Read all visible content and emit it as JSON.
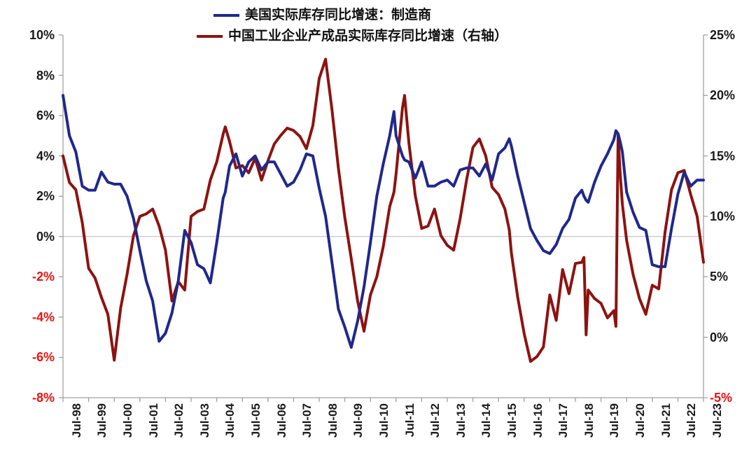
{
  "chart_data": {
    "type": "line",
    "title": "",
    "x_unit": "months_since_Jul-1998",
    "x": [
      0,
      3,
      6,
      9,
      12,
      15,
      18,
      21,
      24,
      27,
      30,
      33,
      36,
      39,
      42,
      45,
      48,
      51,
      54,
      57,
      60,
      63,
      66,
      69,
      72,
      75,
      76,
      78,
      81,
      84,
      87,
      90,
      93,
      96,
      99,
      102,
      105,
      108,
      111,
      114,
      117,
      120,
      123,
      126,
      129,
      132,
      135,
      138,
      141,
      144,
      147,
      150,
      153,
      155,
      156,
      159,
      160,
      162,
      165,
      168,
      171,
      174,
      177,
      180,
      183,
      186,
      189,
      192,
      195,
      198,
      201,
      204,
      207,
      209,
      210,
      213,
      216,
      219,
      222,
      225,
      228,
      231,
      234,
      237,
      240,
      243,
      244,
      245,
      246,
      249,
      252,
      255,
      258,
      259,
      260,
      261,
      262,
      264,
      267,
      270,
      273,
      276,
      279,
      282,
      285,
      288,
      291,
      294,
      297,
      300
    ],
    "series": [
      {
        "name": "美国实际库存同比增速：制造商",
        "axis": "left",
        "color": "#20288c",
        "values": [
          7.0,
          5.0,
          4.2,
          2.5,
          2.3,
          2.3,
          3.2,
          2.7,
          2.6,
          2.6,
          2.0,
          0.9,
          -0.7,
          -2.2,
          -3.2,
          -5.2,
          -4.8,
          -3.8,
          -2.2,
          0.3,
          -0.3,
          -1.4,
          -1.6,
          -2.3,
          -0.3,
          1.9,
          2.2,
          3.5,
          4.1,
          3.0,
          3.7,
          4.0,
          3.3,
          3.7,
          3.7,
          3.1,
          2.5,
          2.7,
          3.3,
          4.1,
          4.0,
          2.4,
          1.0,
          -1.3,
          -3.6,
          -4.5,
          -5.5,
          -4.2,
          -2.5,
          -0.3,
          2.0,
          3.6,
          5.0,
          6.2,
          5.0,
          4.0,
          3.8,
          3.7,
          2.9,
          3.7,
          2.5,
          2.5,
          2.7,
          2.8,
          2.5,
          3.3,
          3.4,
          3.4,
          3.0,
          3.6,
          2.8,
          4.1,
          4.4,
          4.85,
          4.5,
          3.0,
          1.7,
          0.4,
          -0.2,
          -0.7,
          -0.85,
          -0.4,
          0.4,
          0.85,
          1.9,
          2.3,
          2.0,
          1.8,
          1.7,
          2.7,
          3.5,
          4.1,
          4.8,
          5.25,
          5.1,
          4.7,
          4.2,
          2.2,
          1.2,
          0.45,
          0.3,
          -1.4,
          -1.5,
          -1.5,
          0.4,
          2.1,
          3.2,
          2.5,
          2.8,
          2.8
        ]
      },
      {
        "name": "中国工业企业产成品实际库存同比增速（右轴）",
        "axis": "right",
        "color": "#8c1310",
        "values": [
          15.0,
          12.8,
          12.2,
          9.5,
          5.7,
          4.9,
          3.3,
          1.9,
          -1.9,
          2.4,
          5.2,
          8.4,
          10.0,
          10.2,
          10.6,
          9.2,
          7.2,
          3.0,
          4.6,
          3.9,
          10.0,
          10.4,
          10.6,
          13.0,
          14.5,
          16.8,
          17.4,
          16.2,
          14.0,
          14.2,
          13.6,
          14.8,
          13.0,
          14.6,
          16.0,
          16.7,
          17.3,
          17.1,
          16.6,
          15.6,
          17.5,
          21.4,
          23.0,
          18.8,
          14.0,
          9.9,
          6.5,
          3.0,
          0.5,
          3.5,
          5.0,
          7.5,
          10.8,
          12.0,
          13.5,
          19.0,
          20.0,
          16.1,
          11.7,
          9.0,
          9.2,
          10.6,
          8.4,
          7.6,
          7.2,
          9.8,
          13.0,
          15.7,
          16.4,
          15.0,
          12.4,
          11.8,
          10.6,
          8.9,
          7.0,
          3.3,
          0.3,
          -2.0,
          -1.6,
          -0.8,
          3.5,
          1.4,
          5.6,
          3.6,
          6.1,
          6.2,
          6.6,
          0.2,
          3.9,
          3.2,
          2.8,
          1.6,
          2.2,
          0.9,
          16.7,
          13.5,
          11.0,
          8.0,
          5.2,
          3.2,
          1.9,
          4.3,
          4.0,
          8.7,
          12.2,
          13.6,
          13.8,
          11.8,
          10.0,
          6.2
        ]
      }
    ],
    "left_axis": {
      "min": -8,
      "max": 10,
      "ticks": [
        {
          "value": 10,
          "label": "10%"
        },
        {
          "value": 8,
          "label": "8%"
        },
        {
          "value": 6,
          "label": "6%"
        },
        {
          "value": 4,
          "label": "4%"
        },
        {
          "value": 2,
          "label": "2%"
        },
        {
          "value": 0,
          "label": "0%"
        },
        {
          "value": -2,
          "label": "-2%"
        },
        {
          "value": -4,
          "label": "-4%"
        },
        {
          "value": -6,
          "label": "-6%"
        },
        {
          "value": -8,
          "label": "-8%"
        }
      ]
    },
    "right_axis": {
      "min": -5,
      "max": 25,
      "ticks": [
        {
          "value": 25,
          "label": "25%"
        },
        {
          "value": 20,
          "label": "20%"
        },
        {
          "value": 15,
          "label": "15%"
        },
        {
          "value": 10,
          "label": "10%"
        },
        {
          "value": 5,
          "label": "5%"
        },
        {
          "value": 0,
          "label": "0%"
        },
        {
          "value": -5,
          "label": "-5%"
        }
      ]
    },
    "x_ticks": [
      "Jul-98",
      "Jul-99",
      "Jul-00",
      "Jul-01",
      "Jul-02",
      "Jul-03",
      "Jul-04",
      "Jul-05",
      "Jul-06",
      "Jul-07",
      "Jul-08",
      "Jul-09",
      "Jul-10",
      "Jul-11",
      "Jul-12",
      "Jul-13",
      "Jul-14",
      "Jul-15",
      "Jul-16",
      "Jul-17",
      "Jul-18",
      "Jul-19",
      "Jul-20",
      "Jul-21",
      "Jul-22",
      "Jul-23"
    ],
    "months_per_x_tick": 12,
    "grid": "zero-line-only",
    "legend_position": "top-center",
    "colors": {
      "text": "#1a1a1a",
      "negative_tick_label": "#ee1111",
      "axis_line": "#a0a0a0",
      "zero_line": "#c4c4c4"
    }
  }
}
